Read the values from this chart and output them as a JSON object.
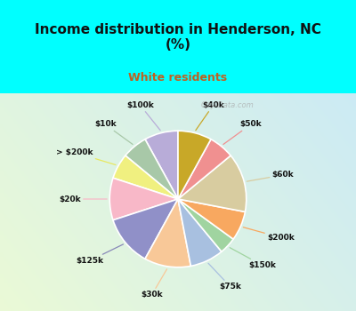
{
  "title": "Income distribution in Henderson, NC\n(%)",
  "subtitle": "White residents",
  "title_color": "#111111",
  "subtitle_color": "#c06020",
  "bg_cyan": "#00ffff",
  "watermark": "City-Data.com",
  "labels": [
    "$100k",
    "$10k",
    "> $200k",
    "$20k",
    "$125k",
    "$30k",
    "$75k",
    "$150k",
    "$200k",
    "$60k",
    "$50k",
    "$40k"
  ],
  "values": [
    8,
    6,
    6,
    10,
    12,
    11,
    8,
    4,
    7,
    14,
    6,
    8
  ],
  "colors": [
    "#b8acd8",
    "#a8c8a8",
    "#f0f080",
    "#f8b8c8",
    "#9090c8",
    "#f8c898",
    "#a8c0e0",
    "#a0d4a0",
    "#f8a860",
    "#d8cca0",
    "#f09090",
    "#c8a828"
  ],
  "line_colors": [
    "#b8acd8",
    "#a8c8a8",
    "#e8e860",
    "#f8b8c8",
    "#8888b8",
    "#f8c898",
    "#a8c0e0",
    "#a0d4a0",
    "#f8a860",
    "#d8cca0",
    "#f09090",
    "#c8a828"
  ],
  "start_angle": 90,
  "figsize": [
    4.0,
    3.5
  ],
  "dpi": 100
}
